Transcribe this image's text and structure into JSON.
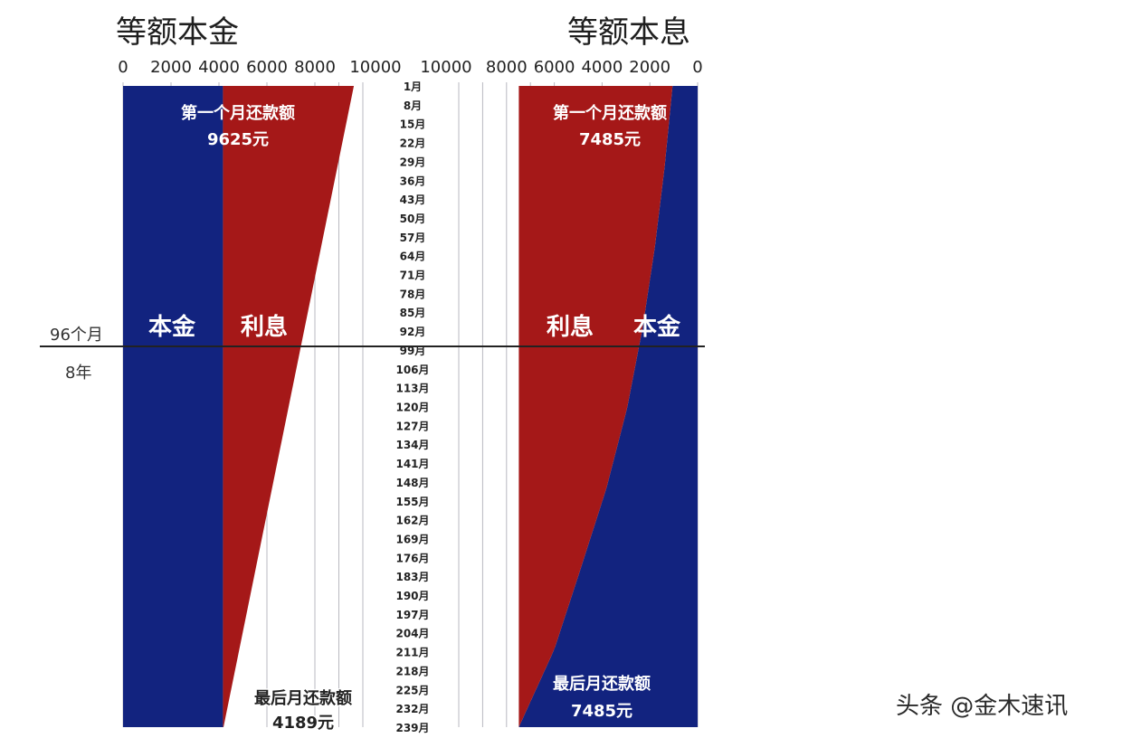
{
  "titles": {
    "left": "等额本金",
    "right": "等额本息"
  },
  "side_labels": {
    "months": "96个月",
    "years": "8年"
  },
  "watermark": "头条 @金木速讯",
  "colors": {
    "principal": "#12237f",
    "interest": "#a51818",
    "grid": "#b8b8c0",
    "divider": "#222222"
  },
  "chart_data": [
    {
      "type": "area",
      "title": "等额本金",
      "x_axis_ticks": [
        "0",
        "2000",
        "4000",
        "6000",
        "8000",
        "10000"
      ],
      "xlim": [
        0,
        10000
      ],
      "y_categories": [
        "1月",
        "8月",
        "15月",
        "22月",
        "29月",
        "36月",
        "43月",
        "50月",
        "57月",
        "64月",
        "71月",
        "78月",
        "85月",
        "92月",
        "99月",
        "106月",
        "113月",
        "120月",
        "127月",
        "134月",
        "141月",
        "148月",
        "155月",
        "162月",
        "169月",
        "176月",
        "183月",
        "190月",
        "197月",
        "204月",
        "211月",
        "218月",
        "225月",
        "232月",
        "239月"
      ],
      "total_months": 240,
      "marker_month": 96,
      "series": [
        {
          "name": "本金",
          "color": "principal",
          "month": [
            1,
            240
          ],
          "value": [
            4167,
            4167
          ]
        },
        {
          "name": "利息",
          "color": "interest",
          "month": [
            1,
            240
          ],
          "value": [
            5458,
            22
          ]
        }
      ],
      "total_payment": {
        "month": [
          1,
          240
        ],
        "value": [
          9625,
          4189
        ]
      },
      "annotations": {
        "first_label": "第一个月还款额",
        "first_value": "9625元",
        "last_label": "最后月还款额",
        "last_value": "4189元"
      },
      "section_labels": {
        "principal": "本金",
        "interest": "利息"
      }
    },
    {
      "type": "area",
      "title": "等额本息",
      "x_axis_ticks": [
        "10000",
        "8000",
        "6000",
        "4000",
        "2000",
        "0"
      ],
      "xlim": [
        10000,
        0
      ],
      "total_months": 240,
      "marker_month": 96,
      "series": [
        {
          "name": "本金",
          "color": "principal",
          "month": [
            1,
            31,
            61,
            91,
            121,
            151,
            181,
            211,
            240
          ],
          "value": [
            1050,
            1380,
            1790,
            2300,
            2950,
            3820,
            4900,
            6000,
            7485
          ]
        },
        {
          "name": "利息",
          "color": "interest",
          "month": [
            1,
            240
          ],
          "value": [
            6435,
            0
          ]
        }
      ],
      "total_payment": {
        "month": [
          1,
          240
        ],
        "value": [
          7485,
          7485
        ]
      },
      "annotations": {
        "first_label": "第一个月还款额",
        "first_value": "7485元",
        "last_label": "最后月还款额",
        "last_value": "7485元"
      },
      "section_labels": {
        "principal": "本金",
        "interest": "利息"
      }
    }
  ]
}
